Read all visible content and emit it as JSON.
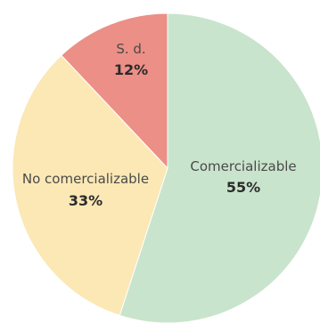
{
  "chart_data": {
    "type": "pie",
    "slices": [
      {
        "label": "Comercializable",
        "value": 55,
        "value_label": "55%",
        "color": "#c9e4cc"
      },
      {
        "label": "No comercializable",
        "value": 33,
        "value_label": "33%",
        "color": "#fbe8b5"
      },
      {
        "label": "S. d.",
        "value": 12,
        "value_label": "12%",
        "color": "#ec8f87"
      }
    ],
    "start_angle_deg": 0,
    "direction": "clockwise",
    "legend": "none",
    "labels": "inside-slices"
  }
}
